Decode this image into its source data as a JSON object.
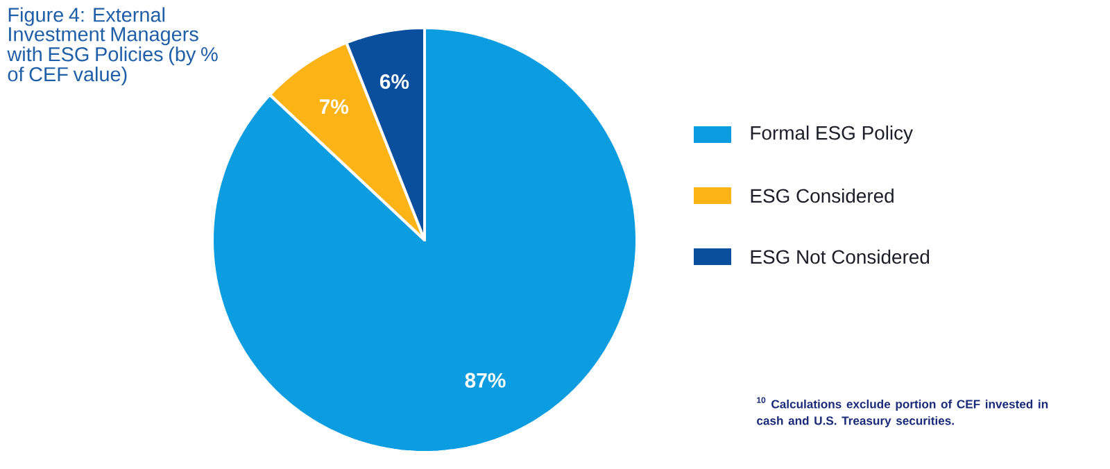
{
  "chart_data": {
    "type": "pie",
    "title": "Figure 4: External Investment Managers with ESG Policies (by % of CEF value)",
    "categories": [
      "Formal ESG Policy",
      "ESG Considered",
      "ESG Not Considered"
    ],
    "values": [
      87,
      7,
      6
    ],
    "value_labels": [
      "87%",
      "7%",
      "6%"
    ],
    "colors": [
      "#0b9de0",
      "#fcb316",
      "#0a4f9e"
    ],
    "legend": "right",
    "annotations": [
      "$^{10}$ Calculations exclude portion of CEF invested in cash and U.S. Treasury securities."
    ]
  }
}
